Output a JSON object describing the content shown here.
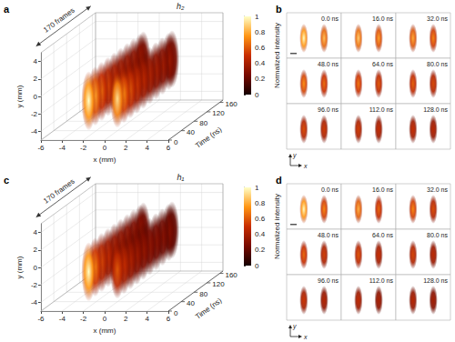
{
  "chart_data": [
    {
      "type": "volume",
      "panel": "a",
      "tag": "h₂",
      "annotation": "170 frames",
      "x_label": "x (mm)",
      "y_label": "y (mm)",
      "t_label": "Time (ns)",
      "xlim": [
        -6,
        6
      ],
      "xticks": [
        -6,
        -4,
        -2,
        0,
        2,
        4,
        6
      ],
      "ylim": [
        -5,
        5
      ],
      "yticks": [
        -4,
        -2,
        0,
        2,
        4
      ],
      "tlim": [
        0,
        170
      ],
      "tticks": [
        0,
        40,
        80,
        120,
        160
      ],
      "t": [
        0,
        20,
        40,
        60,
        80,
        100,
        120,
        140,
        160,
        170
      ],
      "blobs": [
        {
          "x": -1.5,
          "y": -0.5,
          "half_width": 0.7,
          "half_height": 3.4,
          "intensity": [
            1,
            0.78,
            0.64,
            0.55,
            0.49,
            0.45,
            0.42,
            0.4,
            0.38,
            0.37
          ]
        },
        {
          "x": 1.2,
          "y": -0.3,
          "half_width": 0.7,
          "half_height": 3.3,
          "intensity": [
            0.92,
            0.72,
            0.6,
            0.52,
            0.47,
            0.43,
            0.4,
            0.38,
            0.36,
            0.35
          ]
        }
      ],
      "colorbar": {
        "label": "Normalized intensity",
        "range": [
          0,
          1
        ],
        "ticks": [
          0,
          0.2,
          0.4,
          0.6,
          0.8,
          1
        ]
      }
    },
    {
      "type": "frames",
      "panel": "b",
      "axes": [
        "x",
        "y"
      ],
      "frames": [
        "0.0 ns",
        "16.0 ns",
        "32.0 ns",
        "48.0 ns",
        "64.0 ns",
        "80.0 ns",
        "96.0 ns",
        "112.0 ns",
        "128.0 ns"
      ],
      "xlim": [
        -3.5,
        3.5
      ],
      "ylim": [
        -5,
        5
      ],
      "blobs": [
        {
          "x": -1.3,
          "y": -0.6,
          "half_width": 0.55,
          "half_height": 3.2,
          "intensity": [
            1,
            0.88,
            0.8,
            0.74,
            0.68,
            0.63,
            0.58,
            0.54,
            0.5
          ]
        },
        {
          "x": 1.3,
          "y": -0.6,
          "half_width": 0.55,
          "half_height": 3.2,
          "intensity": [
            0.85,
            0.78,
            0.71,
            0.66,
            0.61,
            0.57,
            0.53,
            0.49,
            0.46
          ]
        }
      ]
    },
    {
      "type": "volume",
      "panel": "c",
      "tag": "h₁",
      "annotation": "170 frames",
      "x_label": "x (mm)",
      "y_label": "y (mm)",
      "t_label": "Time (ns)",
      "xlim": [
        -6,
        6
      ],
      "xticks": [
        -6,
        -4,
        -2,
        0,
        2,
        4,
        6
      ],
      "ylim": [
        -5,
        5
      ],
      "yticks": [
        -4,
        -2,
        0,
        2,
        4
      ],
      "tlim": [
        0,
        170
      ],
      "tticks": [
        0,
        40,
        80,
        120,
        160
      ],
      "t": [
        0,
        20,
        40,
        60,
        80,
        100,
        120,
        140,
        160,
        170
      ],
      "blobs": [
        {
          "x": -1.5,
          "y": -0.5,
          "half_width": 0.7,
          "half_height": 3.4,
          "intensity": [
            1,
            0.7,
            0.56,
            0.48,
            0.43,
            0.4,
            0.37,
            0.35,
            0.34,
            0.33
          ]
        },
        {
          "x": 1.2,
          "y": -0.3,
          "half_width": 0.7,
          "half_height": 3.3,
          "intensity": [
            0.6,
            0.5,
            0.43,
            0.38,
            0.35,
            0.33,
            0.31,
            0.3,
            0.29,
            0.28
          ]
        }
      ],
      "colorbar": {
        "label": "Normalized intensity",
        "range": [
          0,
          1
        ],
        "ticks": [
          0,
          0.2,
          0.4,
          0.6,
          0.8,
          1
        ]
      }
    },
    {
      "type": "frames",
      "panel": "d",
      "axes": [
        "x",
        "y"
      ],
      "frames": [
        "0.0 ns",
        "16.0 ns",
        "32.0 ns",
        "48.0 ns",
        "64.0 ns",
        "80.0 ns",
        "96.0 ns",
        "112.0 ns",
        "128.0 ns"
      ],
      "xlim": [
        -3.5,
        3.5
      ],
      "ylim": [
        -5,
        5
      ],
      "blobs": [
        {
          "x": -1.3,
          "y": -0.6,
          "half_width": 0.55,
          "half_height": 3.2,
          "intensity": [
            1,
            0.82,
            0.72,
            0.65,
            0.6,
            0.56,
            0.52,
            0.48,
            0.45
          ]
        },
        {
          "x": 1.3,
          "y": -0.6,
          "half_width": 0.55,
          "half_height": 3.2,
          "intensity": [
            0.72,
            0.64,
            0.58,
            0.54,
            0.5,
            0.47,
            0.44,
            0.41,
            0.39
          ]
        }
      ]
    }
  ]
}
